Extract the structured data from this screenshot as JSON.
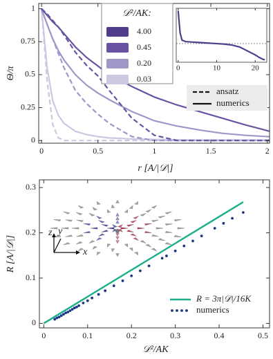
{
  "chart_data": [
    {
      "type": "line",
      "xlabel": "r [A/|𝒟|]",
      "ylabel": "Θ/π",
      "xlim": [
        -0.025,
        2.02
      ],
      "ylim": [
        -0.02,
        1.04
      ],
      "xticks": [
        0,
        0.5,
        1,
        1.5,
        2
      ],
      "yticks": [
        0,
        0.25,
        0.5,
        0.75,
        1
      ],
      "legend_title": "𝒟²/AK:",
      "linestyle_legend": [
        "ansatz",
        "numerics"
      ],
      "x": [
        0,
        0.05,
        0.1,
        0.15,
        0.2,
        0.3,
        0.4,
        0.5,
        0.6,
        0.8,
        1.0,
        1.2,
        1.4,
        1.6,
        1.8,
        2.0,
        2.02
      ],
      "series": [
        {
          "name": "4.00",
          "color": "#4f3d8c",
          "values": [
            null,
            null,
            null,
            null,
            null,
            null,
            null,
            null,
            null,
            null,
            null,
            null,
            null,
            null,
            null,
            null,
            null
          ],
          "ansatz": [
            null,
            null,
            null,
            null,
            null,
            null,
            null,
            null,
            null,
            null,
            null,
            null,
            null,
            null,
            null,
            null,
            null
          ]
        },
        {
          "name": "0.45",
          "color": "#6a52a3",
          "values": [
            1.0,
            0.95,
            0.9,
            0.86,
            0.81,
            0.71,
            0.63,
            0.565,
            0.5,
            0.41,
            0.33,
            0.27,
            0.22,
            0.17,
            0.12,
            0.075,
            0.07
          ],
          "ansatz": [
            1.0,
            0.96,
            0.91,
            0.86,
            0.8,
            0.67,
            0.57,
            0.49,
            0.38,
            0.17,
            0.04,
            0,
            0,
            0,
            0,
            0,
            0
          ]
        },
        {
          "name": "0.20",
          "color": "#9d98c8",
          "values": [
            1.0,
            0.88,
            0.77,
            0.68,
            0.61,
            0.5,
            0.42,
            0.36,
            0.31,
            0.22,
            0.15,
            0.11,
            0.08,
            0.055,
            0.04,
            0.03,
            0.03
          ],
          "ansatz": [
            1.0,
            0.88,
            0.77,
            0.66,
            0.55,
            0.38,
            0.28,
            0.2,
            0.13,
            0.03,
            0,
            0,
            0,
            0,
            0,
            0,
            0
          ]
        },
        {
          "name": "0.03",
          "color": "#cbc8e2",
          "values": [
            1.0,
            0.55,
            0.3,
            0.19,
            0.13,
            0.07,
            0.045,
            0.03,
            0.02,
            0.012,
            0.008,
            0.006,
            0.005,
            0.005,
            0.005,
            0.005,
            0.005
          ],
          "ansatz": [
            1.0,
            0.45,
            0.12,
            0.02,
            0,
            0,
            0,
            0,
            0,
            0,
            0,
            0,
            0,
            0,
            0,
            0,
            0
          ]
        }
      ]
    },
    {
      "type": "line",
      "xlim": [
        -0.5,
        23
      ],
      "ylim": [
        -0.05,
        1.05
      ],
      "xticks": [
        0,
        10,
        20
      ],
      "reference_y": 0.33,
      "x": [
        0,
        0.5,
        1,
        2,
        4,
        6,
        8,
        10,
        12,
        14,
        16,
        18,
        20,
        21,
        22,
        22.5
      ],
      "series": [
        {
          "color": "#4f3d8c",
          "values": [
            1.0,
            0.55,
            0.4,
            0.37,
            0.36,
            0.35,
            0.34,
            0.33,
            0.32,
            0.3,
            0.26,
            0.18,
            0.1,
            0.05,
            0.01,
            0
          ]
        }
      ]
    },
    {
      "type": "scatter",
      "xlabel": "𝒟²/AK",
      "ylabel": "R [A/|𝒟|]",
      "xlim": [
        -0.01,
        0.515
      ],
      "ylim": [
        -0.01,
        0.317
      ],
      "xticks": [
        0,
        0.1,
        0.2,
        0.3,
        0.4,
        0.5
      ],
      "yticks": [
        0,
        0.1,
        0.2,
        0.3
      ],
      "axis_glyph": [
        "z",
        "y",
        "x"
      ],
      "series": [
        {
          "name": "R = 3π|𝒟|/16K",
          "color": "#1aae8a",
          "style": "line",
          "x": [
            0,
            0.455
          ],
          "values": [
            0,
            0.268
          ]
        },
        {
          "name": "numerics",
          "color": "#1c3584",
          "style": "markers",
          "x": [
            0.025,
            0.03,
            0.035,
            0.04,
            0.045,
            0.05,
            0.055,
            0.06,
            0.065,
            0.07,
            0.075,
            0.08,
            0.09,
            0.1,
            0.11,
            0.125,
            0.14,
            0.16,
            0.18,
            0.2,
            0.22,
            0.24,
            0.27,
            0.28,
            0.3,
            0.32,
            0.34,
            0.36,
            0.39,
            0.41,
            0.43,
            0.455
          ],
          "values": [
            0.009,
            0.012,
            0.014,
            0.017,
            0.02,
            0.023,
            0.025,
            0.028,
            0.031,
            0.034,
            0.036,
            0.039,
            0.045,
            0.05,
            0.056,
            0.064,
            0.072,
            0.083,
            0.094,
            0.105,
            0.116,
            0.127,
            0.144,
            0.149,
            0.16,
            0.171,
            0.182,
            0.193,
            0.21,
            0.221,
            0.232,
            0.245
          ]
        }
      ]
    }
  ]
}
